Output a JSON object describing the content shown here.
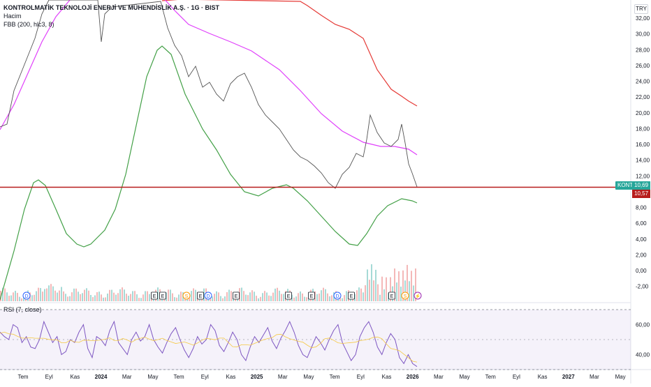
{
  "legend": {
    "title": "KONTROLMATİK TEKNOLOJİ ENERJİ VE MÜHENDİSLİK A.Ş. · 1G · BIST",
    "volume_label": "Hacim",
    "fbb_label": "FBB (200, hlc3, 8)",
    "rsi_label": "RSI (7, close)"
  },
  "currency": "TRY",
  "price_tags": {
    "symbol": "KONTR",
    "last_price": "10,69",
    "line_price": "10,57",
    "symbol_color": "#26a69a",
    "line_color": "#b71c1c"
  },
  "event_markers": [
    {
      "label": "D",
      "color": "#2962ff"
    },
    {
      "label": "E",
      "color": "#131722"
    },
    {
      "label": "E",
      "color": "#131722"
    },
    {
      "label": "S",
      "color": "#ff9800"
    },
    {
      "label": "E",
      "color": "#131722"
    },
    {
      "label": "D",
      "color": "#2962ff"
    },
    {
      "label": "E",
      "color": "#131722"
    },
    {
      "label": "E",
      "color": "#131722"
    },
    {
      "label": "E",
      "color": "#131722"
    },
    {
      "label": "D",
      "color": "#2962ff"
    },
    {
      "label": "E",
      "color": "#131722"
    },
    {
      "label": "E",
      "color": "#131722"
    },
    {
      "label": "S",
      "color": "#ff9800"
    },
    {
      "label": "⚡",
      "color": "#9c27b0"
    }
  ],
  "chart_data": {
    "type": "line",
    "price_axis": {
      "ticks": [
        "32,00",
        "30,00",
        "28,00",
        "26,00",
        "24,00",
        "22,00",
        "20,00",
        "18,00",
        "16,00",
        "14,00",
        "12,00",
        "8,00",
        "6,00",
        "4,00",
        "2,00",
        "0,00",
        "-2,00"
      ],
      "tick_values": [
        32,
        30,
        28,
        26,
        24,
        22,
        20,
        18,
        16,
        14,
        12,
        8,
        6,
        4,
        2,
        0,
        -2
      ],
      "range": [
        -3.5,
        33
      ]
    },
    "rsi_axis": {
      "ticks": [
        "60,00",
        "40,00"
      ],
      "tick_values": [
        60,
        40
      ],
      "range": [
        30,
        70
      ],
      "band": [
        30,
        70
      ]
    },
    "x_axis": {
      "ticks": [
        "Tem",
        "Eyl",
        "Kas",
        "2024",
        "Mar",
        "May",
        "Tem",
        "Eyl",
        "Kas",
        "2025",
        "Mar",
        "May",
        "Tem",
        "Eyl",
        "Kas",
        "2026",
        "Mar",
        "May",
        "Tem",
        "Eyl",
        "Kas",
        "2027",
        "Mar",
        "May"
      ],
      "bold": [
        "2024",
        "2025",
        "2026",
        "2027"
      ]
    },
    "series": [
      {
        "key": "upper",
        "color": "#e53935",
        "points": [
          [
            232,
            1
          ],
          [
            260,
            -1
          ],
          [
            430,
            2
          ],
          [
            440,
            8
          ],
          [
            460,
            22
          ],
          [
            480,
            35
          ],
          [
            500,
            42
          ],
          [
            520,
            55
          ],
          [
            540,
            100
          ],
          [
            560,
            128
          ],
          [
            575,
            138
          ],
          [
            585,
            145
          ],
          [
            597,
            152
          ]
        ]
      },
      {
        "key": "basis",
        "color": "#e040fb",
        "points": [
          [
            0,
            186
          ],
          [
            20,
            150
          ],
          [
            40,
            105
          ],
          [
            60,
            60
          ],
          [
            80,
            24
          ],
          [
            100,
            0
          ],
          [
            232,
            -5
          ],
          [
            250,
            15
          ],
          [
            270,
            35
          ],
          [
            300,
            48
          ],
          [
            330,
            60
          ],
          [
            360,
            73
          ],
          [
            400,
            100
          ],
          [
            430,
            130
          ],
          [
            460,
            163
          ],
          [
            490,
            188
          ],
          [
            520,
            204
          ],
          [
            545,
            210
          ],
          [
            565,
            210
          ],
          [
            585,
            214
          ],
          [
            597,
            222
          ]
        ]
      },
      {
        "key": "lower",
        "color": "#43a047",
        "points": [
          [
            0,
            430
          ],
          [
            20,
            360
          ],
          [
            35,
            300
          ],
          [
            48,
            262
          ],
          [
            55,
            258
          ],
          [
            65,
            266
          ],
          [
            80,
            300
          ],
          [
            95,
            335
          ],
          [
            110,
            350
          ],
          [
            120,
            354
          ],
          [
            130,
            350
          ],
          [
            150,
            330
          ],
          [
            165,
            300
          ],
          [
            180,
            250
          ],
          [
            195,
            180
          ],
          [
            210,
            110
          ],
          [
            225,
            72
          ],
          [
            232,
            66
          ],
          [
            245,
            78
          ],
          [
            265,
            135
          ],
          [
            290,
            185
          ],
          [
            310,
            215
          ],
          [
            330,
            250
          ],
          [
            350,
            275
          ],
          [
            370,
            281
          ],
          [
            390,
            270
          ],
          [
            410,
            265
          ],
          [
            420,
            270
          ],
          [
            440,
            288
          ],
          [
            460,
            310
          ],
          [
            480,
            332
          ],
          [
            500,
            350
          ],
          [
            512,
            352
          ],
          [
            525,
            335
          ],
          [
            540,
            310
          ],
          [
            555,
            295
          ],
          [
            575,
            285
          ],
          [
            590,
            288
          ],
          [
            597,
            291
          ]
        ]
      },
      {
        "key": "price",
        "color": "#555555",
        "points": [
          [
            0,
            182
          ],
          [
            10,
            178
          ],
          [
            20,
            130
          ],
          [
            30,
            105
          ],
          [
            40,
            80
          ],
          [
            50,
            55
          ],
          [
            60,
            20
          ],
          [
            70,
            0
          ],
          [
            140,
            0
          ],
          [
            145,
            60
          ],
          [
            150,
            20
          ],
          [
            160,
            10
          ],
          [
            230,
            2
          ],
          [
            240,
            40
          ],
          [
            250,
            65
          ],
          [
            260,
            80
          ],
          [
            270,
            110
          ],
          [
            280,
            95
          ],
          [
            290,
            125
          ],
          [
            300,
            118
          ],
          [
            310,
            135
          ],
          [
            320,
            145
          ],
          [
            330,
            120
          ],
          [
            340,
            110
          ],
          [
            350,
            105
          ],
          [
            360,
            125
          ],
          [
            370,
            150
          ],
          [
            380,
            165
          ],
          [
            390,
            175
          ],
          [
            400,
            185
          ],
          [
            410,
            200
          ],
          [
            420,
            215
          ],
          [
            430,
            225
          ],
          [
            440,
            230
          ],
          [
            450,
            238
          ],
          [
            460,
            248
          ],
          [
            470,
            262
          ],
          [
            480,
            270
          ],
          [
            490,
            250
          ],
          [
            500,
            240
          ],
          [
            510,
            220
          ],
          [
            520,
            225
          ],
          [
            525,
            200
          ],
          [
            530,
            165
          ],
          [
            540,
            190
          ],
          [
            550,
            205
          ],
          [
            560,
            210
          ],
          [
            570,
            200
          ],
          [
            575,
            178
          ],
          [
            580,
            205
          ],
          [
            585,
            235
          ],
          [
            590,
            248
          ],
          [
            597,
            268
          ]
        ]
      }
    ],
    "price_line_value": 10.57,
    "last_price": 10.69,
    "rsi": [
      55,
      52,
      50,
      60,
      58,
      48,
      52,
      45,
      44,
      50,
      62,
      55,
      48,
      52,
      40,
      42,
      50,
      48,
      55,
      60,
      44,
      38,
      52,
      50,
      46,
      56,
      62,
      48,
      44,
      40,
      50,
      55,
      49,
      52,
      60,
      50,
      45,
      41,
      48,
      54,
      58,
      50,
      43,
      38,
      44,
      52,
      47,
      50,
      60,
      56,
      46,
      42,
      48,
      55,
      50,
      40,
      36,
      45,
      52,
      48,
      53,
      58,
      49,
      44,
      51,
      56,
      62,
      55,
      46,
      40,
      38,
      45,
      52,
      48,
      43,
      50,
      56,
      60,
      48,
      42,
      36,
      40,
      52,
      58,
      62,
      55,
      45,
      40,
      48,
      54,
      50,
      38,
      34,
      40,
      34,
      32
    ]
  }
}
